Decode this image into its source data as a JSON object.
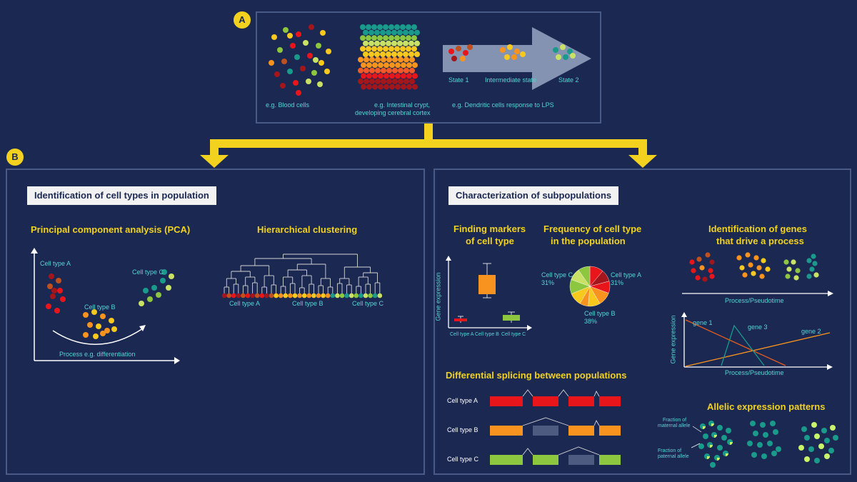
{
  "panel_a": {
    "badge": "A",
    "labels": {
      "blood": "e.g. Blood cells",
      "crypt_l1": "e.g. Intestinal crypt,",
      "crypt_l2": "developing cerebral cortex",
      "dendritic": "e.g. Dendritic cells response to LPS",
      "state1": "State 1",
      "intermediate": "Intermediate state",
      "state2": "State 2"
    }
  },
  "panel_b_left": {
    "badge": "B",
    "title": "Identification of cell types in population",
    "pca": {
      "heading": "Principal component analysis (PCA)",
      "cell_type_a": "Cell type A",
      "cell_type_b": "Cell type B",
      "cell_type_c": "Cell type C",
      "process": "Process e.g. differentiation"
    },
    "hc": {
      "heading": "Hierarchical clustering",
      "cell_type_a": "Cell type A",
      "cell_type_b": "Cell type B",
      "cell_type_c": "Cell type C"
    }
  },
  "panel_b_right": {
    "title": "Characterization of subpopulations",
    "markers": {
      "heading_l1": "Finding markers",
      "heading_l2": "of cell type",
      "ylabel": "Gene expression",
      "x_a": "Cell type A",
      "x_b": "Cell type B",
      "x_c": "Cell type C"
    },
    "frequency": {
      "heading_l1": "Frequency of cell type",
      "heading_l2": "in the population",
      "c_label": "Cell type C",
      "c_pct": "31%",
      "a_label": "Cell type A",
      "a_pct": "31%",
      "b_label": "Cell type B",
      "b_pct": "38%"
    },
    "genes": {
      "heading_l1": "Identification of genes",
      "heading_l2": "that drive a process",
      "process": "Process/Pseudotime",
      "ylabel": "Gene expression",
      "gene1": "gene 1",
      "gene2": "gene 2",
      "gene3": "gene 3",
      "process2": "Process/Pseudotime"
    },
    "splicing": {
      "heading": "Differential splicing between populations",
      "row_a": "Cell type A",
      "row_b": "Cell type B",
      "row_c": "Cell type C"
    },
    "allelic": {
      "heading": "Allelic expression patterns",
      "maternal_l1": "Fraction of",
      "maternal_l2": "maternal allele",
      "paternal_l1": "Fraction of",
      "paternal_l2": "paternal allele"
    }
  },
  "colors": {
    "background": "#1b2852",
    "accent_yellow": "#f2d21f",
    "label_teal": "#56d5d2",
    "red": "#e8161b",
    "orange": "#f7931e",
    "green": "#8dc63f",
    "teal": "#1a9a8a"
  }
}
